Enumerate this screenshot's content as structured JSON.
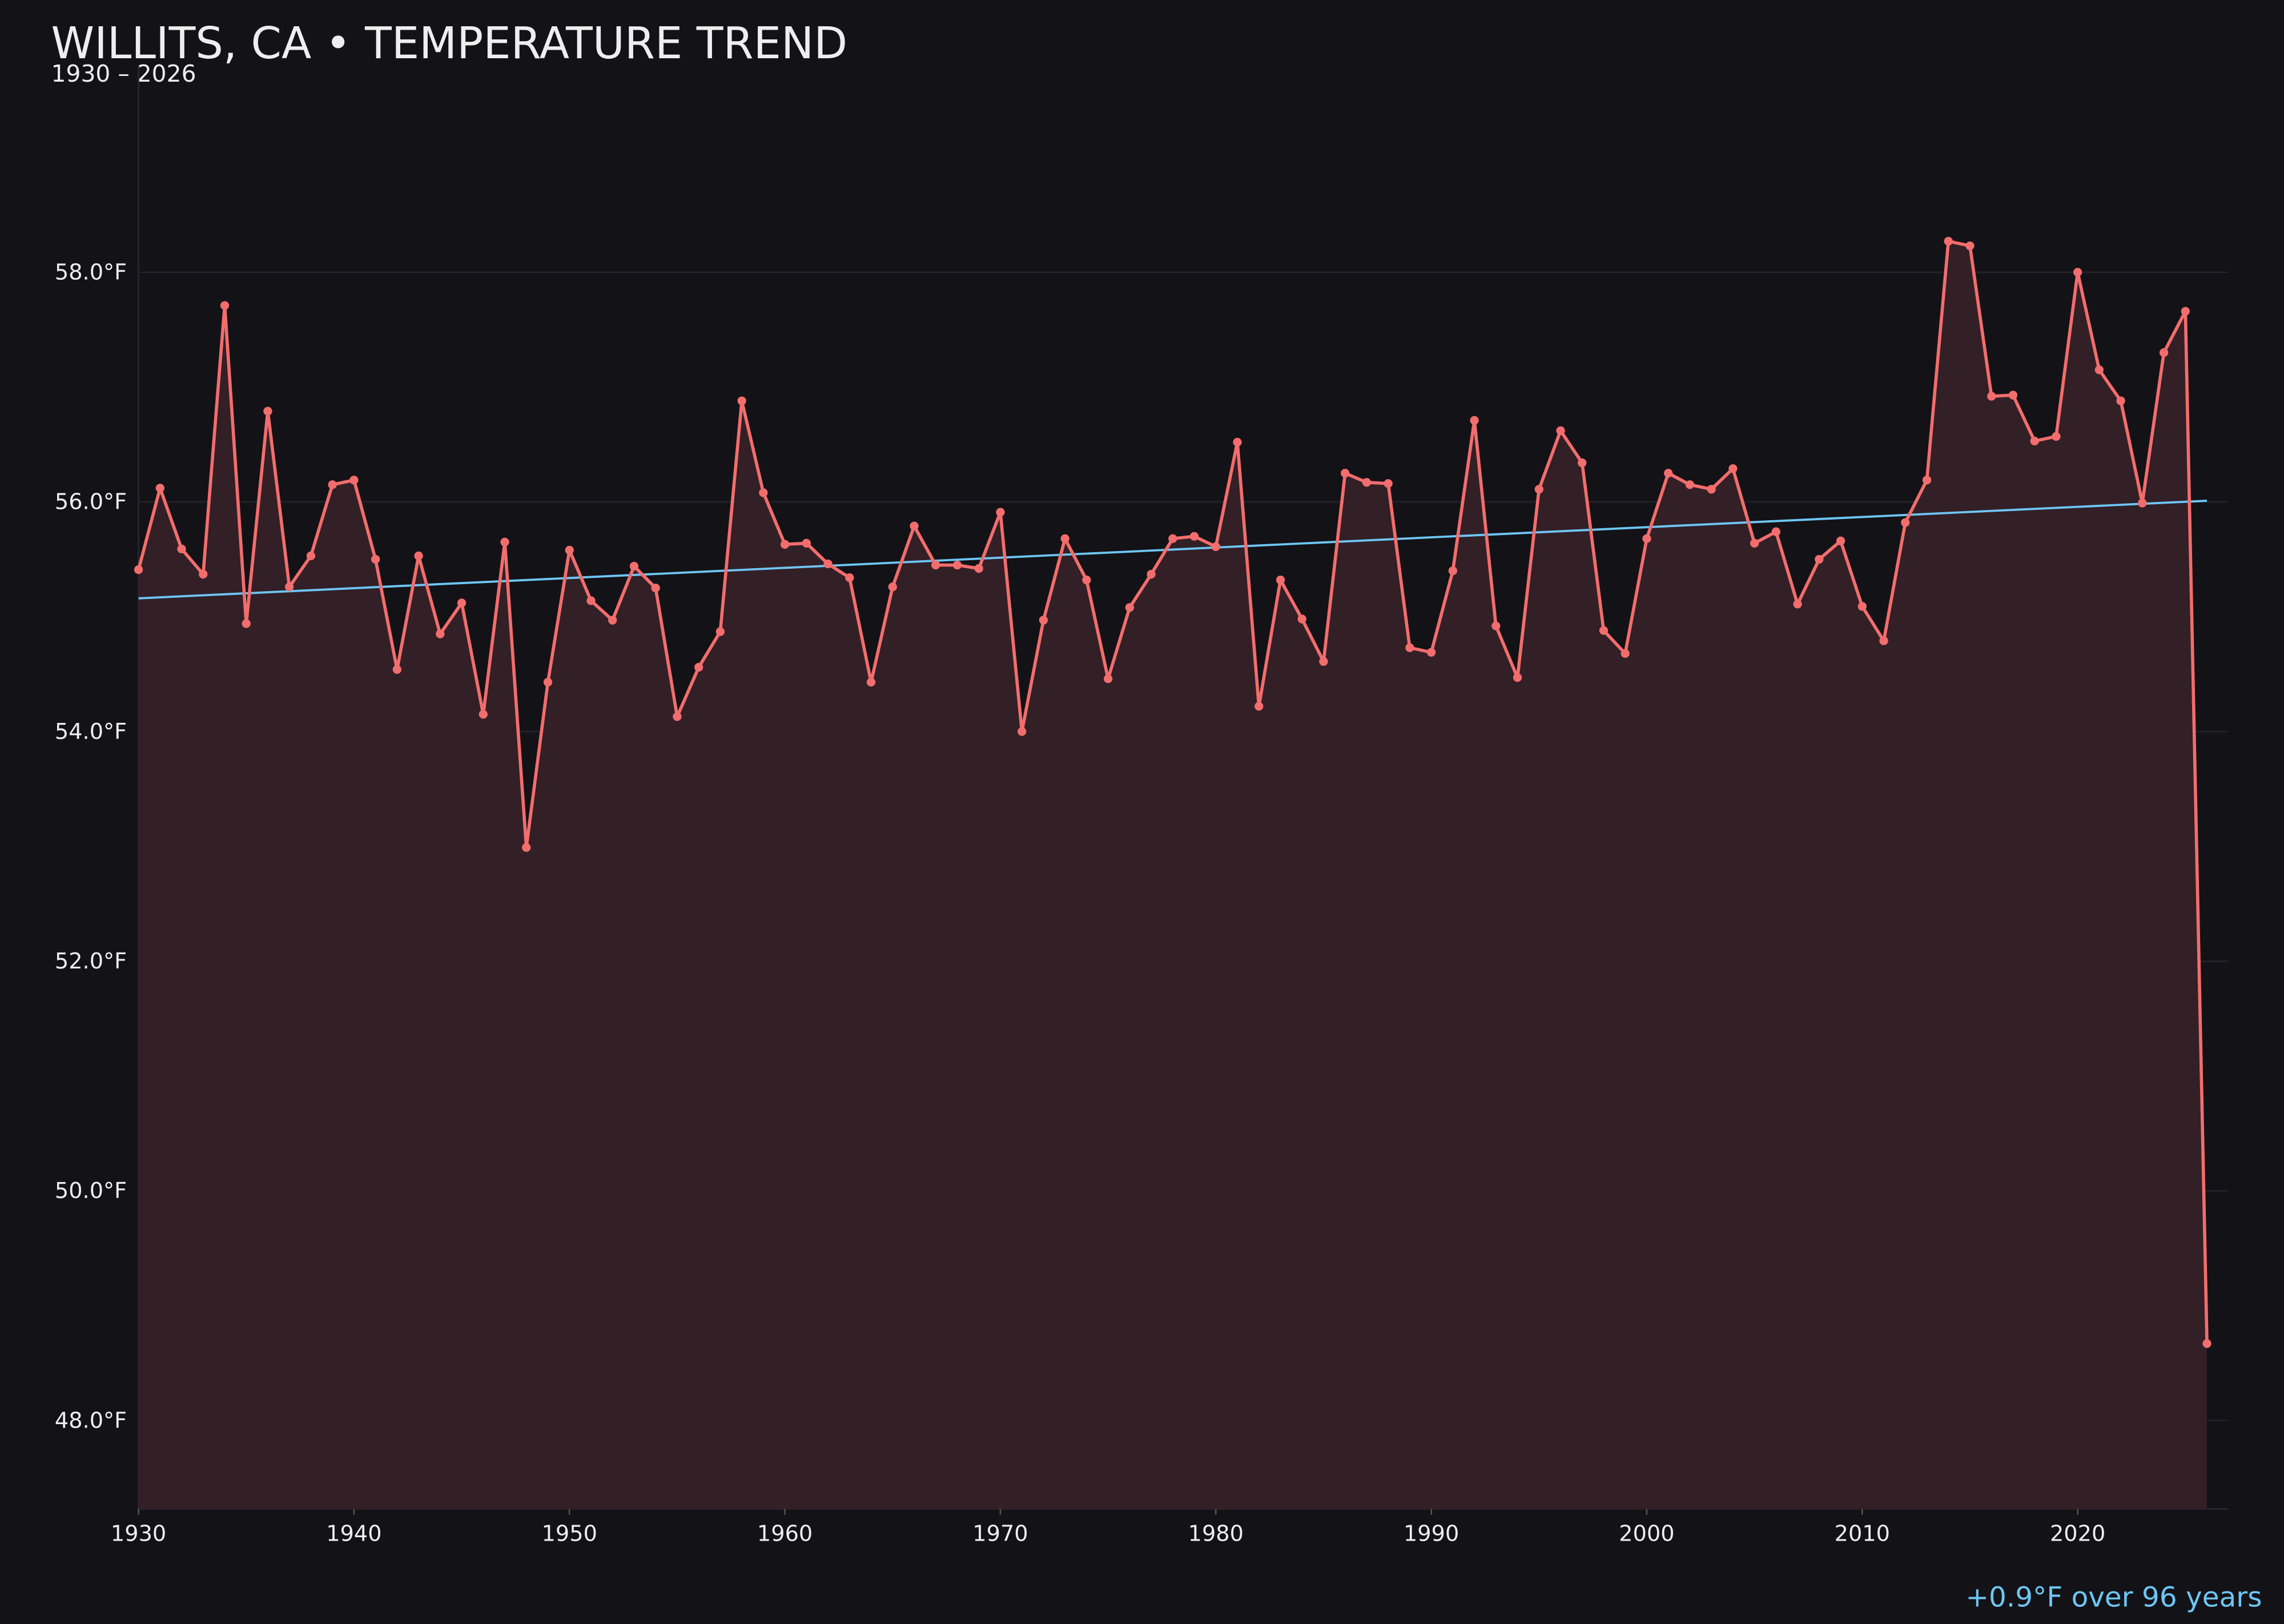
{
  "chart_data": {
    "type": "line",
    "title": "WILLITS, CA • TEMPERATURE TREND",
    "subtitle": "1930 – 2026",
    "annotation": "+0.9°F over 96 years",
    "x": [
      1930,
      1931,
      1932,
      1933,
      1934,
      1935,
      1936,
      1937,
      1938,
      1939,
      1940,
      1941,
      1942,
      1943,
      1944,
      1945,
      1946,
      1947,
      1948,
      1949,
      1950,
      1951,
      1952,
      1953,
      1954,
      1955,
      1956,
      1957,
      1958,
      1959,
      1960,
      1961,
      1962,
      1963,
      1964,
      1965,
      1966,
      1967,
      1968,
      1969,
      1970,
      1971,
      1972,
      1973,
      1974,
      1975,
      1976,
      1977,
      1978,
      1979,
      1980,
      1981,
      1982,
      1983,
      1984,
      1985,
      1986,
      1987,
      1988,
      1989,
      1990,
      1991,
      1992,
      1993,
      1994,
      1995,
      1996,
      1997,
      1998,
      1999,
      2000,
      2001,
      2002,
      2003,
      2004,
      2005,
      2006,
      2007,
      2008,
      2009,
      2010,
      2011,
      2012,
      2013,
      2014,
      2015,
      2016,
      2017,
      2018,
      2019,
      2020,
      2021,
      2022,
      2023,
      2024,
      2025,
      2026
    ],
    "values": [
      55.41,
      56.12,
      55.59,
      55.37,
      57.71,
      54.94,
      56.79,
      55.26,
      55.53,
      56.15,
      56.19,
      55.5,
      54.54,
      55.53,
      54.85,
      55.12,
      54.15,
      55.65,
      52.99,
      54.43,
      55.58,
      55.14,
      54.97,
      55.44,
      55.25,
      54.13,
      54.56,
      54.87,
      56.88,
      56.08,
      55.63,
      55.64,
      55.46,
      55.34,
      54.43,
      55.26,
      55.79,
      55.45,
      55.45,
      55.42,
      55.91,
      54.0,
      54.97,
      55.68,
      55.32,
      54.46,
      55.08,
      55.37,
      55.68,
      55.7,
      55.61,
      56.52,
      54.22,
      55.32,
      54.98,
      54.61,
      56.25,
      56.17,
      56.16,
      54.73,
      54.69,
      55.4,
      56.71,
      54.92,
      54.47,
      56.11,
      56.62,
      56.34,
      54.88,
      54.68,
      55.68,
      56.25,
      56.15,
      56.11,
      56.29,
      55.64,
      55.74,
      55.11,
      55.5,
      55.66,
      55.09,
      54.79,
      55.82,
      56.19,
      58.27,
      58.23,
      56.92,
      56.93,
      56.53,
      56.57,
      58.0,
      57.15,
      56.88,
      55.99,
      57.3,
      57.66,
      48.67
    ],
    "color": "#f26d6d",
    "fill_color": "#331f26",
    "trend": {
      "x": [
        1930,
        2026
      ],
      "values": [
        55.16,
        56.01
      ],
      "color": "#6ec6f5"
    },
    "xlim": [
      1930,
      2027
    ],
    "xticks": [
      1930,
      1940,
      1950,
      1960,
      1970,
      1980,
      1990,
      2000,
      2010,
      2020
    ],
    "ylim": [
      47.23,
      59.8
    ],
    "yticks": [
      {
        "value": 48,
        "label": "48.0°F"
      },
      {
        "value": 50,
        "label": "50.0°F"
      },
      {
        "value": 52,
        "label": "52.0°F"
      },
      {
        "value": 54,
        "label": "54.0°F"
      },
      {
        "value": 56,
        "label": "56.0°F"
      },
      {
        "value": 58,
        "label": "58.0°F"
      }
    ],
    "grid": true
  }
}
